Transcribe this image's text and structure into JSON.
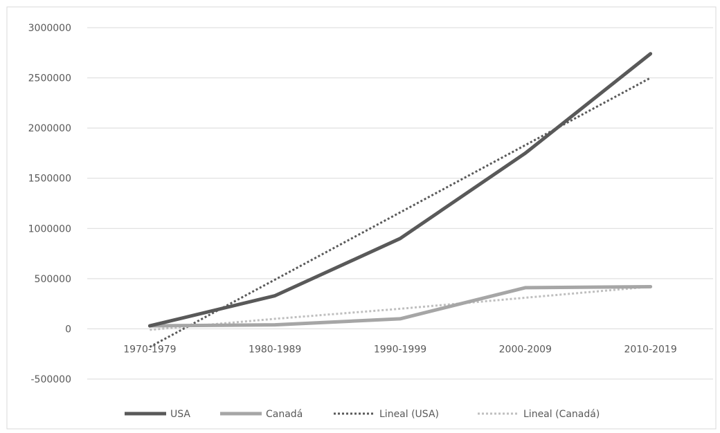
{
  "chart_data": {
    "type": "line",
    "categories": [
      "1970-1979",
      "1980-1989",
      "1990-1999",
      "2000-2009",
      "2010-2019"
    ],
    "series": [
      {
        "name": "USA",
        "values": [
          30000,
          330000,
          900000,
          1750000,
          2740000
        ],
        "color": "#595959",
        "style": "solid"
      },
      {
        "name": "Canadá",
        "values": [
          30000,
          40000,
          100000,
          410000,
          420000
        ],
        "color": "#a6a6a6",
        "style": "solid"
      },
      {
        "name": "Lineal (USA)",
        "values": [
          -180000,
          490000,
          1160000,
          1830000,
          2500000
        ],
        "color": "#595959",
        "style": "dotted"
      },
      {
        "name": "Lineal (Canadá)",
        "values": [
          -10000,
          100000,
          200000,
          310000,
          420000
        ],
        "color": "#bfbfbf",
        "style": "dotted"
      }
    ],
    "y_ticks": [
      "3000000",
      "2500000",
      "2000000",
      "1500000",
      "1000000",
      "500000",
      "0",
      "-500000"
    ],
    "ylim": [
      -500000,
      3000000
    ],
    "title": "",
    "xlabel": "",
    "ylabel": "",
    "grid": true,
    "legend_position": "bottom"
  }
}
